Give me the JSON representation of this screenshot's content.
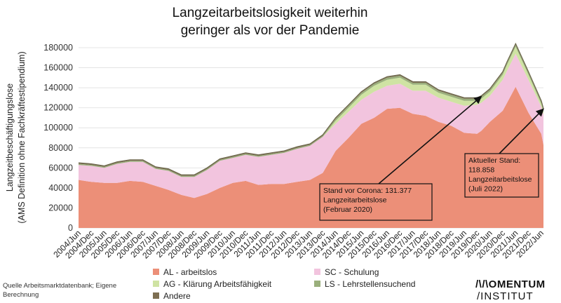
{
  "chart_data": {
    "type": "area",
    "stacked": true,
    "title_lines": [
      "Langzeitarbeitslosigkeit  weiterhin",
      "geringer als vor der Pandemie"
    ],
    "ylabel_lines": [
      "Langzeitbeschäftigungslose",
      "(AMS Definition ohne Fachkräftestipendium)"
    ],
    "xlabel": "",
    "ylim": [
      0,
      180000
    ],
    "yticks": [
      0,
      20000,
      40000,
      60000,
      80000,
      100000,
      120000,
      140000,
      160000,
      180000
    ],
    "ytick_labels": [
      "0",
      "20000",
      "40000",
      "60000",
      "80000",
      "100000",
      "120000",
      "140000",
      "160000",
      "180000"
    ],
    "grid": true,
    "x_start": "2004/Jun",
    "x_end": "2022/Jul",
    "x_tick_labels": [
      "2004/Jun",
      "2004/Dec",
      "2005/Jun",
      "2005/Dec",
      "2006/Jun",
      "2006/Dec",
      "2007/Jun",
      "2007/Dec",
      "2008/Jun",
      "2008/Dec",
      "2009/Jun",
      "2009/Dec",
      "2010/Jun",
      "2010/Dec",
      "2011/Jun",
      "2011/Dec",
      "2012/Jun",
      "2012/Dec",
      "2013/Jun",
      "2013/Dec",
      "2014/Jun",
      "2014/Dec",
      "2015/Jun",
      "2015/Dec",
      "2016/Jun",
      "2016/Dec",
      "2017/Jun",
      "2017/Dec",
      "2018/Jun",
      "2018/Dec",
      "2019/Jun",
      "2019/Dec",
      "2020/Jun",
      "2020/Dec",
      "2021/Jun",
      "2021/Dec",
      "2022/Jun"
    ],
    "x": [
      "2004/Jun",
      "2004/Dec",
      "2005/Jun",
      "2005/Dec",
      "2006/Jun",
      "2006/Dec",
      "2007/Jun",
      "2007/Dec",
      "2008/Jun",
      "2008/Dec",
      "2009/Jun",
      "2009/Dec",
      "2010/Jun",
      "2010/Dec",
      "2011/Jun",
      "2011/Dec",
      "2012/Jun",
      "2012/Dec",
      "2013/Jun",
      "2013/Dec",
      "2014/Jun",
      "2014/Dec",
      "2015/Jun",
      "2015/Dec",
      "2016/Jun",
      "2016/Dec",
      "2017/Jun",
      "2017/Dec",
      "2018/Jun",
      "2018/Dec",
      "2019/Jun",
      "2019/Dec",
      "2020/Feb",
      "2020/Jun",
      "2020/Dec",
      "2021/Feb",
      "2021/Jun",
      "2021/Dec",
      "2022/Jun",
      "2022/Jul"
    ],
    "series": [
      {
        "name": "AL - arbeitslos",
        "color": "#ec8f78",
        "values": [
          48000,
          46000,
          45000,
          45000,
          47000,
          46000,
          42000,
          38000,
          33000,
          30000,
          34000,
          40000,
          45000,
          47000,
          43000,
          44000,
          44000,
          46000,
          48000,
          55000,
          77000,
          90000,
          104000,
          110000,
          119000,
          120000,
          114000,
          112000,
          106000,
          102000,
          95000,
          94000,
          97000,
          106000,
          117000,
          125000,
          141000,
          115000,
          94000,
          83000
        ]
      },
      {
        "name": "SC - Schulung",
        "color": "#f2c4de",
        "values": [
          15000,
          16000,
          15000,
          19000,
          19000,
          20000,
          17000,
          19000,
          18000,
          21000,
          24000,
          27000,
          25000,
          26000,
          28000,
          29000,
          31000,
          33000,
          34000,
          36000,
          27000,
          26000,
          24000,
          26000,
          23000,
          24000,
          23000,
          25000,
          24000,
          24000,
          27000,
          29000,
          28000,
          26000,
          31000,
          32000,
          33000,
          33000,
          27000,
          30000
        ]
      },
      {
        "name": "AG - Klärung Arbeitsfähigkeit",
        "color": "#cfe3a3",
        "values": [
          0,
          0,
          0,
          0,
          0,
          0,
          0,
          0,
          0,
          0,
          0,
          0,
          0,
          0,
          0,
          0,
          0,
          0,
          0,
          0,
          3000,
          4000,
          5000,
          6000,
          6000,
          6000,
          6000,
          6000,
          5000,
          5000,
          5000,
          4000,
          4000,
          4000,
          5000,
          6000,
          7000,
          5000,
          3000,
          3000
        ]
      },
      {
        "name": "LS - Lehrstellensuchend",
        "color": "#9aaf7c",
        "values": [
          1000,
          1000,
          1000,
          1000,
          1000,
          1000,
          1000,
          1000,
          1000,
          1000,
          1000,
          1000,
          1000,
          1000,
          1000,
          1000,
          1000,
          1000,
          1000,
          1000,
          2000,
          2000,
          2000,
          2000,
          2000,
          2000,
          2000,
          2000,
          2000,
          2000,
          2000,
          2000,
          2000,
          2000,
          2000,
          2000,
          2000,
          2000,
          2000,
          2000
        ]
      },
      {
        "name": "Andere",
        "color": "#7d6e52",
        "values": [
          1000,
          1000,
          1000,
          1000,
          1000,
          1000,
          1000,
          1000,
          1000,
          1000,
          1000,
          1000,
          1000,
          1000,
          1000,
          1000,
          1000,
          1000,
          1000,
          1000,
          1000,
          1000,
          1000,
          1000,
          1000,
          1000,
          1000,
          1000,
          1000,
          1000,
          1000,
          1000,
          1000,
          1000,
          1000,
          1000,
          1000,
          1000,
          1000,
          1000
        ]
      }
    ],
    "legend_placement": "bottom",
    "annotations": [
      {
        "lines": [
          "Stand vor Corona: 131.377",
          "Langzeitarbeitslose",
          "(Februar 2020)"
        ],
        "target_x": "2020/Feb",
        "target_y": 131377
      },
      {
        "lines": [
          "Aktueller Stand:",
          "118.858",
          "Langzeitarbeitslose",
          "(Juli 2022)"
        ],
        "target_x": "2022/Jul",
        "target_y": 118858
      }
    ]
  },
  "footer": {
    "source_lines": [
      "Quelle Arbeitsmarktdatenbank; Eigene",
      "Berechnung"
    ],
    "logo_line1": "/\\/\\OMENTUM",
    "logo_line2": "/INSTITUT"
  }
}
